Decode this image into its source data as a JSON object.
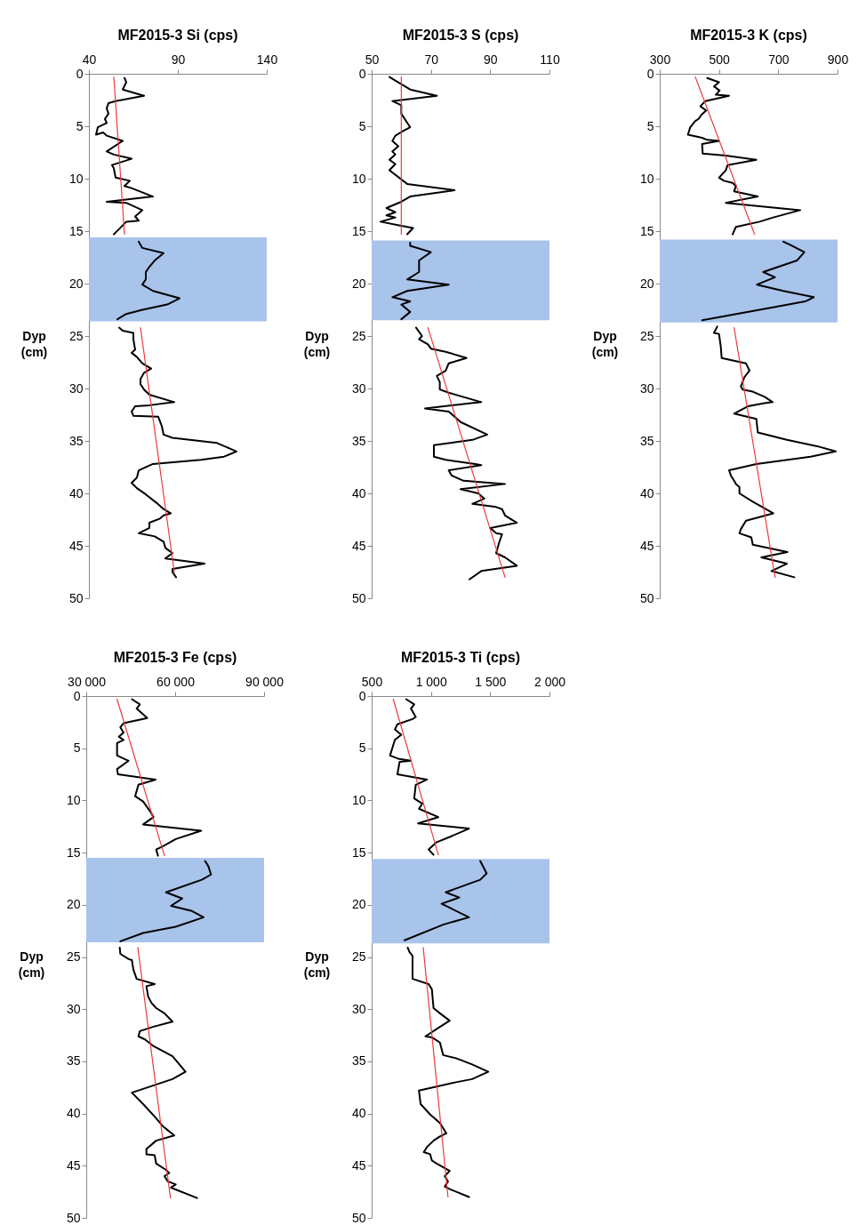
{
  "chart_data": [
    {
      "type": "line",
      "title": "MF2015-3 Si (cps)",
      "ylabel": "Dyp (cm)",
      "xlim": [
        40,
        140
      ],
      "xticks": [
        40,
        90,
        140
      ],
      "ylim": [
        50,
        0
      ],
      "yticks": [
        0,
        5,
        10,
        15,
        20,
        25,
        30,
        35,
        40,
        45,
        50
      ],
      "bands": [
        {
          "axis": "y",
          "from": 15.6,
          "to": 23.6,
          "color": "#a9c4eb"
        }
      ],
      "series": [
        {
          "color": "#000000",
          "x": [
            60,
            61,
            59,
            71,
            55,
            51,
            50,
            51,
            49,
            50,
            45,
            44,
            48,
            50,
            59,
            50,
            54,
            64,
            53,
            54,
            55,
            63,
            60,
            64,
            76,
            50,
            61,
            70,
            66,
            68,
            61,
            57,
            54
          ],
          "values": [
            0.4,
            0.8,
            1.5,
            2.1,
            2.6,
            2.8,
            3.3,
            3.8,
            4.3,
            4.7,
            5.1,
            5.8,
            5.6,
            5.9,
            6.4,
            7.4,
            7.7,
            8.1,
            8.7,
            9.0,
            9.9,
            10.2,
            10.7,
            10.9,
            11.7,
            12.2,
            12.3,
            13.0,
            13.6,
            14.0,
            14.1,
            14.8,
            15.3
          ]
        },
        {
          "color": "#000000",
          "x": [
            68,
            70,
            82,
            77,
            74,
            72,
            72,
            70,
            76,
            91,
            84,
            70,
            61,
            56
          ],
          "values": [
            16.0,
            16.6,
            17.1,
            17.8,
            18.4,
            18.9,
            19.6,
            20.1,
            20.7,
            21.4,
            22.0,
            22.5,
            22.9,
            23.4
          ]
        },
        {
          "color": "#000000",
          "x": [
            57,
            59,
            65,
            65,
            66,
            64,
            67,
            70,
            75,
            71,
            69,
            69,
            71,
            74,
            88,
            74,
            66,
            64,
            65,
            79,
            81,
            82,
            87,
            112,
            123,
            116,
            103,
            76,
            68,
            67,
            64,
            67,
            72,
            78,
            82,
            86,
            82,
            80,
            74,
            74,
            68,
            77,
            82,
            83,
            87,
            83,
            105,
            87,
            87,
            89
          ],
          "values": [
            24.2,
            24.5,
            24.7,
            25.3,
            26.3,
            26.6,
            27.0,
            27.6,
            28.1,
            28.5,
            29.1,
            29.6,
            30.1,
            30.6,
            31.3,
            31.6,
            31.7,
            32.2,
            32.6,
            32.7,
            33.6,
            34.4,
            34.7,
            35.2,
            36.0,
            36.5,
            36.8,
            37.2,
            37.8,
            38.5,
            39.0,
            39.5,
            40.1,
            40.9,
            41.5,
            41.9,
            42.1,
            42.4,
            42.8,
            43.3,
            43.8,
            44.1,
            44.6,
            45.2,
            45.7,
            46.2,
            46.7,
            47.2,
            47.5,
            48.0
          ]
        },
        {
          "type": "line",
          "color": "#ee3b3b",
          "x": [
            54,
            60
          ],
          "values": [
            0.3,
            15.3
          ]
        },
        {
          "type": "line",
          "color": "#ee3b3b",
          "x": [
            69,
            88
          ],
          "values": [
            24.2,
            47.5
          ]
        }
      ]
    },
    {
      "type": "line",
      "title": "MF2015-3 S (cps)",
      "ylabel": "Dyp (cm)",
      "xlim": [
        50,
        110
      ],
      "xticks": [
        50,
        70,
        90,
        110
      ],
      "ylim": [
        50,
        0
      ],
      "yticks": [
        0,
        5,
        10,
        15,
        20,
        25,
        30,
        35,
        40,
        45,
        50
      ],
      "bands": [
        {
          "axis": "y",
          "from": 15.9,
          "to": 23.5,
          "color": "#a9c4eb"
        }
      ],
      "series": [
        {
          "color": "#000000",
          "x": [
            56,
            63,
            72,
            57,
            60,
            60,
            63,
            61,
            58,
            57,
            59,
            57,
            58,
            56,
            58,
            56,
            62,
            78,
            63,
            60,
            55,
            58,
            55,
            58,
            53,
            60,
            64,
            62
          ],
          "values": [
            0.3,
            1.5,
            2.1,
            2.6,
            3.0,
            3.8,
            5.1,
            5.4,
            5.9,
            6.4,
            6.9,
            7.4,
            7.7,
            8.2,
            8.6,
            9.2,
            10.5,
            11.1,
            11.7,
            12.2,
            12.8,
            13.2,
            13.5,
            13.7,
            14.1,
            14.5,
            14.7,
            15.3
          ]
        },
        {
          "color": "#000000",
          "x": [
            63,
            63,
            70,
            66,
            66,
            62,
            76,
            62,
            57,
            63,
            60,
            63,
            60
          ],
          "values": [
            16.1,
            16.4,
            17.0,
            17.8,
            18.9,
            19.6,
            20.1,
            20.7,
            21.3,
            21.7,
            22.0,
            22.7,
            23.4
          ]
        },
        {
          "color": "#000000",
          "x": [
            65,
            67,
            66,
            69,
            70,
            75,
            82,
            76,
            75,
            72,
            73,
            73,
            76,
            87,
            68,
            76,
            78,
            80,
            89,
            84,
            71,
            71,
            75,
            85,
            87,
            76,
            77,
            81,
            95,
            80,
            86,
            88,
            84,
            92,
            94,
            95,
            99,
            90,
            92,
            94,
            93,
            92,
            95,
            99,
            87,
            83
          ],
          "values": [
            24.2,
            25.0,
            25.3,
            25.8,
            26.2,
            26.5,
            27.1,
            27.6,
            28.3,
            28.8,
            29.4,
            30.1,
            30.4,
            31.3,
            31.9,
            32.2,
            32.7,
            33.2,
            34.4,
            34.9,
            35.4,
            36.5,
            36.8,
            37.2,
            37.3,
            37.8,
            38.3,
            38.8,
            39.1,
            39.6,
            40.0,
            40.5,
            41.0,
            41.3,
            41.5,
            42.1,
            42.8,
            43.3,
            43.8,
            43.9,
            44.7,
            45.7,
            46.1,
            46.9,
            47.4,
            48.2
          ]
        },
        {
          "type": "line",
          "color": "#ee3b3b",
          "x": [
            60,
            60
          ],
          "values": [
            0.3,
            15.3
          ]
        },
        {
          "type": "line",
          "color": "#ee3b3b",
          "x": [
            69,
            95
          ],
          "values": [
            24.2,
            48.0
          ]
        }
      ]
    },
    {
      "type": "line",
      "title": "MF2015-3 K (cps)",
      "ylabel": "Dyp (cm)",
      "xlim": [
        300,
        900
      ],
      "xticks": [
        300,
        500,
        700,
        900
      ],
      "ylim": [
        50,
        0
      ],
      "yticks": [
        0,
        5,
        10,
        15,
        20,
        25,
        30,
        35,
        40,
        45,
        50
      ],
      "bands": [
        {
          "axis": "y",
          "from": 15.8,
          "to": 23.7,
          "color": "#a9c4eb"
        }
      ],
      "series": [
        {
          "color": "#000000",
          "x": [
            460,
            500,
            483,
            502,
            489,
            534,
            454,
            437,
            457,
            441,
            431,
            420,
            403,
            395,
            443,
            460,
            500,
            443,
            445,
            523,
            626,
            529,
            523,
            500,
            517,
            546,
            557,
            551,
            631,
            523,
            774,
            683,
            637,
            557,
            546
          ],
          "values": [
            0.4,
            0.8,
            1.2,
            1.6,
            2.0,
            2.1,
            2.6,
            3.1,
            3.5,
            3.9,
            4.3,
            4.5,
            5.1,
            5.8,
            6.1,
            6.3,
            6.4,
            6.7,
            7.6,
            7.8,
            8.2,
            8.7,
            9.2,
            9.9,
            10.2,
            10.4,
            10.7,
            11.2,
            11.7,
            12.3,
            13.0,
            13.7,
            14.1,
            14.6,
            15.3
          ]
        },
        {
          "color": "#000000",
          "x": [
            717,
            740,
            788,
            763,
            649,
            689,
            628,
            717,
            820,
            791,
            694,
            443
          ],
          "values": [
            16.0,
            16.3,
            17.0,
            17.8,
            18.9,
            19.4,
            20.1,
            20.7,
            21.3,
            21.7,
            22.2,
            23.5
          ]
        },
        {
          "color": "#000000",
          "x": [
            494,
            483,
            500,
            506,
            509,
            591,
            603,
            586,
            574,
            580,
            614,
            654,
            681,
            654,
            597,
            551,
            626,
            631,
            729,
            831,
            894,
            809,
            626,
            534,
            540,
            551,
            557,
            569,
            569,
            614,
            683,
            591,
            574,
            569,
            609,
            614,
            731,
            643,
            729,
            677,
            754
          ],
          "values": [
            24.1,
            24.7,
            24.8,
            26.0,
            27.1,
            27.6,
            28.3,
            28.9,
            29.8,
            30.1,
            30.3,
            30.8,
            31.3,
            31.4,
            31.7,
            32.4,
            32.9,
            34.2,
            34.9,
            35.5,
            36.0,
            36.5,
            37.2,
            37.8,
            38.3,
            38.8,
            39.1,
            39.4,
            40.0,
            40.8,
            41.9,
            42.6,
            43.4,
            43.8,
            44.2,
            44.9,
            45.6,
            46.1,
            46.7,
            47.4,
            48.0
          ]
        },
        {
          "type": "line",
          "color": "#ee3b3b",
          "x": [
            420,
            620
          ],
          "values": [
            0.3,
            15.3
          ]
        },
        {
          "type": "line",
          "color": "#ee3b3b",
          "x": [
            551,
            689
          ],
          "values": [
            24.2,
            48.0
          ]
        }
      ]
    },
    {
      "type": "line",
      "title": "MF2015-3 Fe (cps)",
      "ylabel": "Dyp (cm)",
      "xlim": [
        30000,
        90000
      ],
      "xticks": [
        {
          "value": 30000,
          "label": "30 000"
        },
        {
          "value": 60000,
          "label": "60 000"
        },
        {
          "value": 90000,
          "label": "90 000"
        }
      ],
      "ylim": [
        50,
        0
      ],
      "yticks": [
        0,
        5,
        10,
        15,
        20,
        25,
        30,
        35,
        40,
        45,
        50
      ],
      "bands": [
        {
          "axis": "y",
          "from": 15.5,
          "to": 23.6,
          "color": "#a9c4eb"
        }
      ],
      "series": [
        {
          "color": "#000000",
          "x": [
            45400,
            48100,
            47000,
            50600,
            42600,
            41500,
            42600,
            41000,
            42600,
            40400,
            40400,
            44300,
            40400,
            40700,
            53400,
            47600,
            46500,
            49200,
            51700,
            52700,
            49200,
            68800,
            60200,
            55800,
            53600,
            54200
          ],
          "values": [
            0.3,
            0.8,
            1.2,
            2.1,
            2.6,
            3.0,
            3.5,
            3.9,
            4.2,
            4.5,
            5.7,
            6.2,
            7.0,
            7.5,
            8.0,
            8.5,
            9.6,
            10.1,
            11.1,
            11.6,
            12.3,
            12.9,
            13.7,
            14.4,
            14.7,
            15.3
          ]
        },
        {
          "color": "#000000",
          "x": [
            70100,
            71200,
            72100,
            69000,
            56900,
            62400,
            58600,
            65700,
            69600,
            60200,
            49200,
            41500
          ],
          "values": [
            15.8,
            16.3,
            17.1,
            17.6,
            18.8,
            19.4,
            20.1,
            20.6,
            21.2,
            22.1,
            22.7,
            23.5
          ]
        },
        {
          "color": "#000000",
          "x": [
            41300,
            41500,
            44300,
            45400,
            45900,
            47000,
            53100,
            50300,
            50900,
            52000,
            53600,
            56400,
            59100,
            52500,
            48100,
            47600,
            49800,
            52500,
            59100,
            63500,
            59100,
            45400,
            49200,
            53100,
            55800,
            57500,
            59700,
            53600,
            50300,
            50300,
            53100,
            53600,
            56900,
            58000,
            56400,
            57500,
            60200,
            58600,
            67400
          ],
          "values": [
            24.1,
            24.7,
            25.2,
            25.3,
            26.2,
            27.1,
            27.6,
            27.8,
            28.8,
            29.4,
            29.9,
            30.4,
            31.2,
            31.7,
            32.1,
            32.6,
            32.9,
            33.5,
            34.5,
            36.0,
            36.7,
            38.0,
            39.1,
            40.3,
            41.2,
            41.6,
            42.1,
            42.6,
            43.4,
            43.9,
            44.0,
            44.8,
            45.4,
            45.7,
            46.0,
            46.5,
            46.8,
            47.1,
            48.1
          ]
        },
        {
          "type": "line",
          "color": "#ee3b3b",
          "x": [
            40400,
            56400
          ],
          "values": [
            0.3,
            15.3
          ]
        },
        {
          "type": "line",
          "color": "#ee3b3b",
          "x": [
            47400,
            58400
          ],
          "values": [
            24.1,
            48.1
          ]
        }
      ]
    },
    {
      "type": "line",
      "title": "MF2015-3 Ti (cps)",
      "ylabel": "Dyp (cm)",
      "xlim": [
        500,
        2000
      ],
      "xticks": [
        500,
        {
          "value": 1000,
          "label": "1 000"
        },
        {
          "value": 1500,
          "label": "1 500"
        },
        {
          "value": 2000,
          "label": "2 000"
        }
      ],
      "ylim": [
        50,
        0
      ],
      "yticks": [
        0,
        5,
        10,
        15,
        20,
        25,
        30,
        35,
        40,
        45,
        50
      ],
      "bands": [
        {
          "axis": "y",
          "from": 15.6,
          "to": 23.7,
          "color": "#a9c4eb"
        }
      ],
      "series": [
        {
          "color": "#000000",
          "x": [
            791,
            859,
            831,
            872,
            845,
            717,
            696,
            750,
            696,
            682,
            655,
            723,
            831,
            736,
            717,
            967,
            872,
            859,
            899,
            927,
            899,
            1062,
            891,
            1321,
            1158,
            1049,
            981,
            1022
          ],
          "values": [
            0.3,
            0.8,
            1.2,
            2.0,
            2.2,
            2.7,
            3.2,
            3.7,
            4.2,
            4.7,
            5.7,
            6.0,
            6.2,
            6.3,
            7.5,
            8.0,
            8.5,
            9.8,
            10.1,
            10.3,
            10.8,
            11.6,
            12.2,
            12.7,
            13.5,
            14.0,
            14.7,
            15.2
          ]
        },
        {
          "color": "#000000",
          "x": [
            1416,
            1470,
            1416,
            1125,
            1239,
            1090,
            1321,
            1103,
            777
          ],
          "values": [
            15.8,
            17.0,
            17.6,
            18.8,
            19.3,
            19.9,
            21.2,
            21.9,
            23.4
          ]
        },
        {
          "color": "#000000",
          "x": [
            804,
            818,
            845,
            845,
            981,
            1008,
            1022,
            1076,
            1158,
            1076,
            954,
            1008,
            1076,
            1103,
            1212,
            1348,
            1484,
            1348,
            1212,
            899,
            913,
            994,
            1076,
            1130,
            1076,
            1022,
            967,
            940,
            994,
            1008,
            1035,
            1158,
            1117,
            1144,
            1117,
            1171,
            1321
          ],
          "values": [
            24.1,
            24.5,
            24.9,
            27.1,
            27.6,
            28.1,
            29.9,
            30.4,
            31.1,
            31.7,
            32.6,
            32.7,
            33.2,
            34.4,
            34.7,
            35.3,
            36.0,
            36.7,
            37.0,
            37.8,
            39.1,
            40.1,
            40.9,
            41.9,
            42.2,
            42.6,
            43.2,
            43.7,
            43.9,
            44.5,
            44.7,
            45.5,
            46.0,
            46.5,
            47.0,
            47.3,
            48.0
          ]
        },
        {
          "type": "line",
          "color": "#ee3b3b",
          "x": [
            682,
            1062
          ],
          "values": [
            0.3,
            15.2
          ]
        },
        {
          "type": "line",
          "color": "#ee3b3b",
          "x": [
            935,
            1144
          ],
          "values": [
            24.1,
            48.0
          ]
        }
      ]
    }
  ]
}
